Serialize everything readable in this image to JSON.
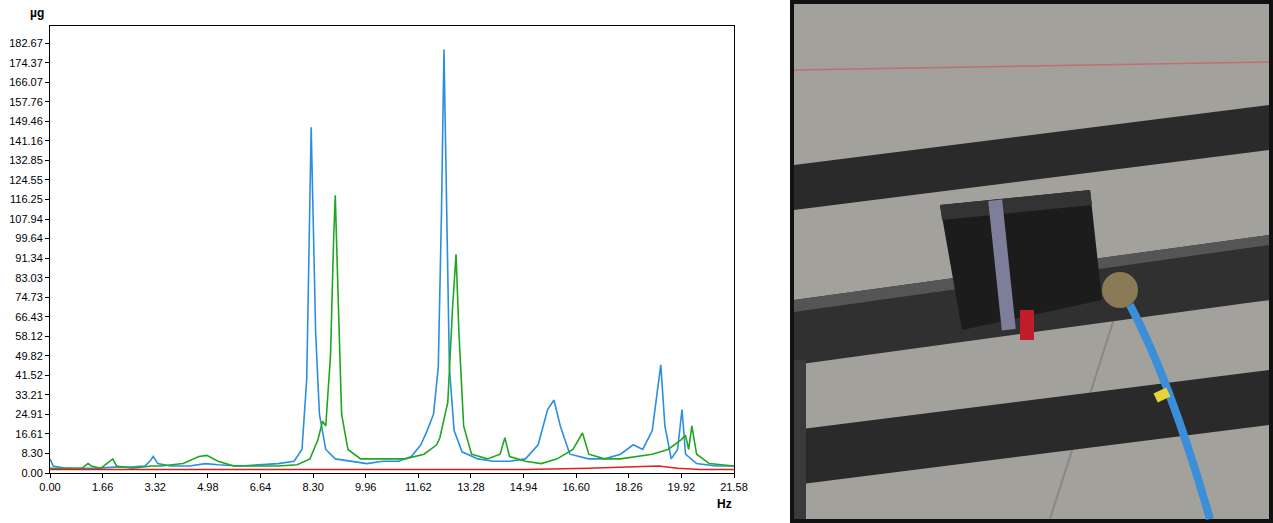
{
  "chart_data": {
    "type": "line",
    "x_label": "Hz",
    "y_label": "µg",
    "xlim": [
      0,
      21.58
    ],
    "ylim": [
      0,
      190
    ],
    "grid": false,
    "xticks": [
      {
        "value": 0,
        "label": "0.00"
      },
      1.66,
      3.32,
      4.98,
      6.64,
      {
        "value": 8.3,
        "label": "8.30"
      },
      9.96,
      11.62,
      13.28,
      14.94,
      {
        "value": 16.6,
        "label": "16.60"
      },
      18.26,
      19.92,
      21.58
    ],
    "yticks": [
      {
        "value": 0,
        "label": "0.00"
      },
      {
        "value": 8.3,
        "label": "8.30"
      },
      16.61,
      24.91,
      33.21,
      41.52,
      49.82,
      58.12,
      66.43,
      74.73,
      83.03,
      91.34,
      99.64,
      107.94,
      116.25,
      124.55,
      132.85,
      141.16,
      149.46,
      157.76,
      166.07,
      174.37,
      182.67
    ],
    "series": [
      {
        "color": "#2b8fe0",
        "x": [
          0,
          0.1,
          0.5,
          1.0,
          1.5,
          2.0,
          2.5,
          3.0,
          3.15,
          3.26,
          3.4,
          3.8,
          4.4,
          4.9,
          5.3,
          6.0,
          6.6,
          7.2,
          7.7,
          7.95,
          8.1,
          8.18,
          8.24,
          8.3,
          8.38,
          8.5,
          8.7,
          9.0,
          9.5,
          10.0,
          10.5,
          11.0,
          11.4,
          11.7,
          11.9,
          12.1,
          12.25,
          12.35,
          12.43,
          12.5,
          12.6,
          12.75,
          13.0,
          13.5,
          14.0,
          14.5,
          15.0,
          15.4,
          15.7,
          15.9,
          16.1,
          16.4,
          17.0,
          17.5,
          18.0,
          18.4,
          18.7,
          19.0,
          19.15,
          19.27,
          19.4,
          19.6,
          19.8,
          19.94,
          20.05,
          20.4,
          21.0,
          21.58
        ],
        "values": [
          6,
          3,
          2,
          2,
          2,
          2.5,
          2.5,
          3,
          5,
          7,
          4,
          3,
          3,
          4,
          3.5,
          3,
          3.5,
          4,
          5,
          10,
          40,
          100,
          147,
          110,
          60,
          25,
          10,
          6,
          5,
          4,
          5,
          5,
          7,
          12,
          18,
          25,
          45,
          110,
          180,
          120,
          45,
          18,
          9,
          6,
          5,
          5,
          6,
          12,
          27,
          31,
          20,
          8,
          6,
          6,
          8,
          12,
          10,
          18,
          35,
          46,
          20,
          6,
          10,
          27,
          8,
          4,
          3,
          3
        ]
      },
      {
        "color": "#1fa81f",
        "x": [
          0,
          1.0,
          1.2,
          1.3,
          1.6,
          1.98,
          2.1,
          2.6,
          3.2,
          3.5,
          4.2,
          4.7,
          4.95,
          5.3,
          5.8,
          6.5,
          7.2,
          7.8,
          8.2,
          8.45,
          8.6,
          8.7,
          8.85,
          8.95,
          9.0,
          9.08,
          9.2,
          9.4,
          9.8,
          10.5,
          11.2,
          11.8,
          12.2,
          12.3,
          12.55,
          12.7,
          12.81,
          12.9,
          13.05,
          13.3,
          13.8,
          14.2,
          14.35,
          14.5,
          15.0,
          15.5,
          16.0,
          16.5,
          16.8,
          17.0,
          17.5,
          18.0,
          18.5,
          19.0,
          19.5,
          19.9,
          20.05,
          20.15,
          20.25,
          20.4,
          20.8,
          21.58
        ],
        "values": [
          2,
          2,
          4,
          3,
          2,
          6,
          3,
          2,
          3,
          3,
          4,
          7,
          7.5,
          5,
          3,
          3,
          3,
          3.5,
          6,
          14,
          22,
          20,
          50,
          100,
          118,
          80,
          25,
          10,
          6,
          6,
          6,
          8,
          12,
          15,
          30,
          70,
          93,
          60,
          20,
          8,
          6,
          8,
          15,
          7,
          5,
          4,
          6,
          10,
          17,
          8,
          6,
          6,
          7,
          8,
          10,
          14,
          16,
          10,
          20,
          8,
          4,
          3
        ]
      },
      {
        "color": "#e0201e",
        "x": [
          0,
          5,
          10,
          15,
          17,
          18,
          18.6,
          19.2,
          19.8,
          20.5,
          21.58
        ],
        "values": [
          1.5,
          1.5,
          1.5,
          1.5,
          2,
          2.5,
          3,
          3,
          2,
          1.5,
          1.5
        ]
      }
    ]
  }
}
